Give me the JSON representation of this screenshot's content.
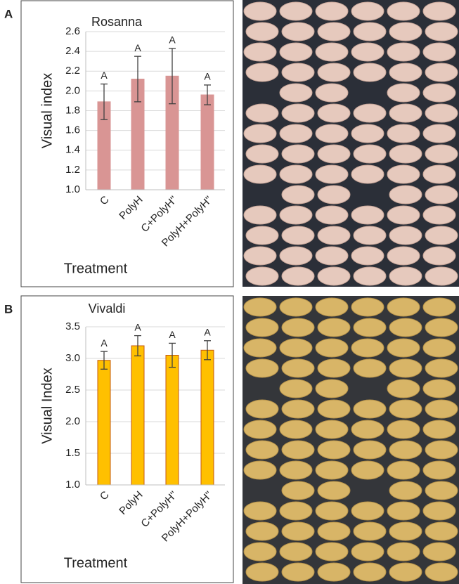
{
  "chart_data": [
    {
      "type": "bar",
      "panel_label": "A",
      "title": "Rosanna",
      "y_label": "Visual index",
      "x_label": "Treatment",
      "categories": [
        "C",
        "PolyH",
        "C+PolyH''",
        "PolyH+PolyH''"
      ],
      "values": [
        1.89,
        2.12,
        2.15,
        1.96
      ],
      "errors": [
        0.18,
        0.23,
        0.28,
        0.1
      ],
      "letters": [
        "A",
        "A",
        "A",
        "A"
      ],
      "color": "#d99594",
      "edge_color": "#d99594",
      "ylim": [
        1.0,
        2.6
      ],
      "yticks": [
        {
          "value": 1.0,
          "label": "1.0"
        },
        1.2,
        1.4,
        1.6,
        1.8,
        {
          "value": 2.0,
          "label": "2.0"
        },
        2.2,
        2.4,
        2.6
      ],
      "grid": true
    },
    {
      "type": "bar",
      "panel_label": "B",
      "title": "Vivaldi",
      "y_label": "Visual Index",
      "x_label": "Treatment",
      "categories": [
        "C",
        "PolyH",
        "C+PolyH''",
        "PolyH+PolyH''"
      ],
      "values": [
        2.97,
        3.2,
        3.05,
        3.13
      ],
      "errors": [
        0.14,
        0.16,
        0.19,
        0.15
      ],
      "letters": [
        "A",
        "A",
        "A",
        "A"
      ],
      "color": "#ffc000",
      "edge_color": "#c55a11",
      "ylim": [
        1.0,
        3.5
      ],
      "yticks": [
        {
          "value": 1.0,
          "label": "1.0"
        },
        1.5,
        {
          "value": 2.0,
          "label": "2.0"
        },
        2.5,
        {
          "value": 3.0,
          "label": "3.0"
        },
        3.5
      ],
      "grid": true
    }
  ]
}
